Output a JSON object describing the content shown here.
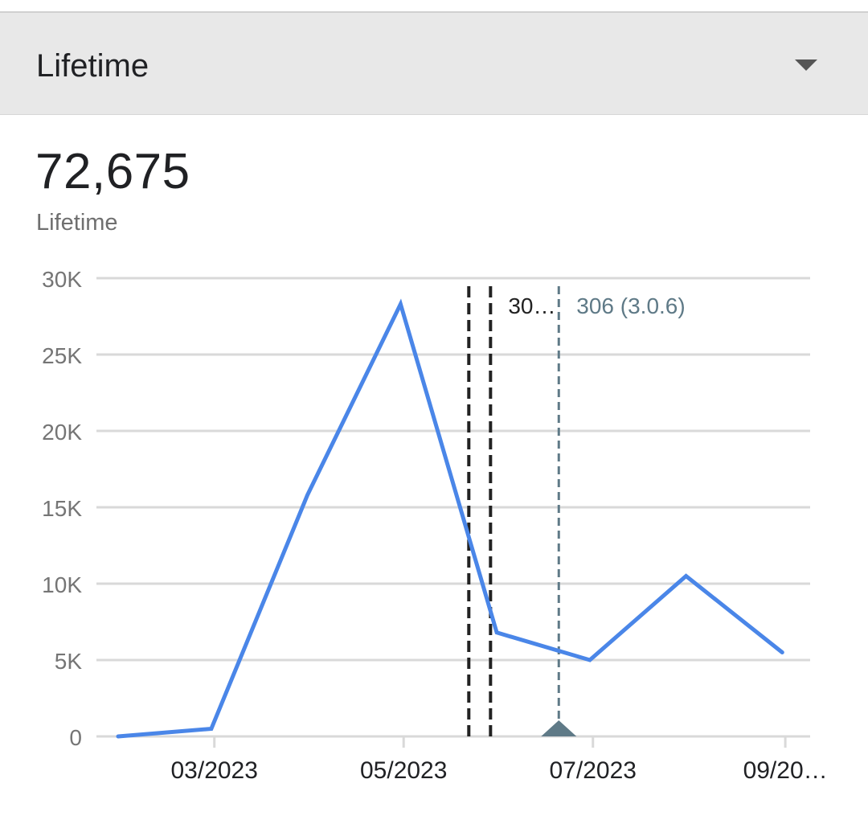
{
  "header": {
    "range_label": "Lifetime"
  },
  "summary": {
    "value": "72,675",
    "label": "Lifetime"
  },
  "chart_data": {
    "type": "line",
    "title": "",
    "xlabel": "",
    "ylabel": "",
    "ylim": [
      0,
      30000
    ],
    "y_ticks": [
      0,
      5000,
      10000,
      15000,
      20000,
      25000,
      30000
    ],
    "y_tick_labels": [
      "0",
      "5K",
      "10K",
      "15K",
      "20K",
      "25K",
      "30K"
    ],
    "x_ticks": [
      "2023-03-01",
      "2023-05-01",
      "2023-07-01",
      "2023-09-01"
    ],
    "x_tick_labels": [
      "03/2023",
      "05/2023",
      "07/2023",
      "09/20…"
    ],
    "xlim": [
      "2023-01-22",
      "2023-09-09"
    ],
    "grid": true,
    "color": "#4a86e8",
    "series": [
      {
        "x": [
          "2023-01-29",
          "2023-02-28",
          "2023-03-31",
          "2023-04-30",
          "2023-05-31",
          "2023-06-30",
          "2023-07-31",
          "2023-08-31"
        ],
        "values": [
          0,
          500,
          15800,
          28300,
          6800,
          5000,
          10500,
          5500
        ]
      }
    ],
    "annotations": [
      {
        "date": "2023-05-22",
        "label": "",
        "color": "#222222"
      },
      {
        "date": "2023-05-29",
        "label": "30…",
        "color": "#222222"
      },
      {
        "date": "2023-06-20",
        "label": "306 (3.0.6)",
        "color": "#5f7a87",
        "marker": true
      }
    ]
  }
}
